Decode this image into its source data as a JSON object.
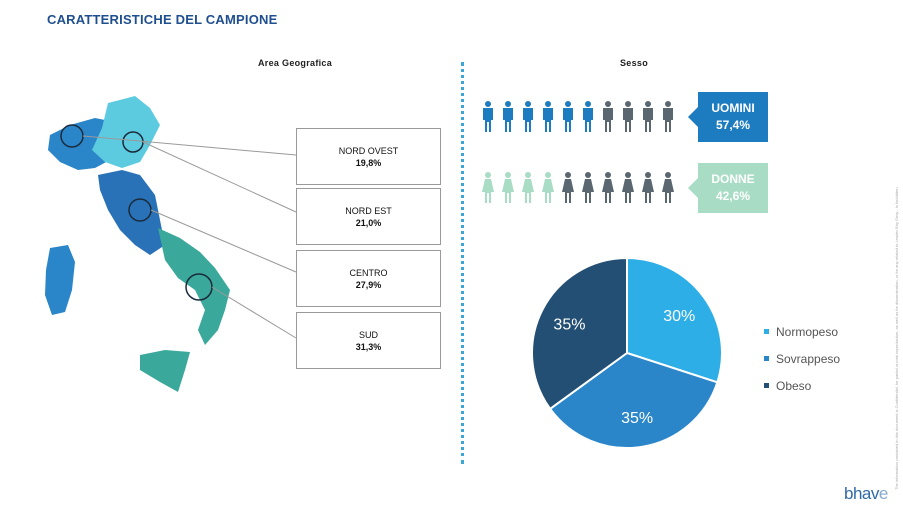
{
  "title": "CARATTERISTICHE DEL CAMPIONE",
  "area": {
    "title": "Area Geografica",
    "regions": [
      {
        "label": "NORD OVEST",
        "value": "19,8%"
      },
      {
        "label": "NORD EST",
        "value": "21,0%"
      },
      {
        "label": "CENTRO",
        "value": "27,9%"
      },
      {
        "label": "SUD",
        "value": "31,3%"
      }
    ]
  },
  "sesso": {
    "title": "Sesso",
    "men": {
      "label": "UOMINI",
      "value": "57,4%",
      "color": "#1d7bbf",
      "icons_colored": 6,
      "icons_total": 10
    },
    "women": {
      "label": "DONNE",
      "value": "42,6%",
      "color": "#a9dcc5",
      "icons_colored": 4,
      "icons_total": 10
    },
    "inactive_color": "#5a6770"
  },
  "chart_data": {
    "type": "pie",
    "slices": [
      {
        "name": "Normopeso",
        "value": 30,
        "label": "30%",
        "color": "#2eaee6"
      },
      {
        "name": "Sovrappeso",
        "value": 35,
        "label": "35%",
        "color": "#2a86c9"
      },
      {
        "name": "Obeso",
        "value": 35,
        "label": "35%",
        "color": "#244f74"
      }
    ]
  },
  "logo": {
    "text_main": "bhav",
    "text_end": "e"
  },
  "side_note": "The information contained in this document is Confidential, for partial or total reproduction, as well as for dissemination, or for any related to Leader Bhy Gmiy - is forbidden"
}
